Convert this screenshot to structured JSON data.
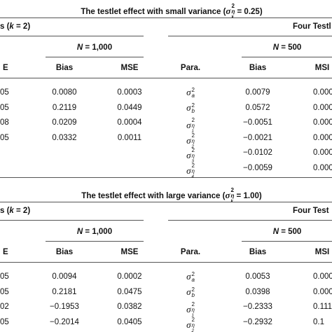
{
  "sections": [
    {
      "title": {
        "text": "The testlet effect with small variance (",
        "sym": "σ",
        "sup": "2",
        "sub": "η",
        "subsub": "k",
        "rest": " = 0.25)"
      },
      "left_header": {
        "pre": "s (",
        "var": "k",
        "post": " = 2)"
      },
      "right_header": "Four Testl",
      "left_group": {
        "var": "N",
        "rest": " = 1,000"
      },
      "right_group": {
        "var": "N",
        "rest": " = 500"
      },
      "left_columns": [
        "E",
        "Bias",
        "MSE"
      ],
      "right_columns": [
        "Para.",
        "Bias",
        "MSI"
      ],
      "left_rows": [
        [
          "05",
          "0.0080",
          "0.0003"
        ],
        [
          "05",
          "0.2119",
          "0.0449"
        ],
        [
          "08",
          "0.0209",
          "0.0004"
        ],
        [
          "05",
          "0.0332",
          "0.0011"
        ]
      ],
      "right_rows": [
        {
          "param": {
            "sym": "σ",
            "sup": "2",
            "sub": "a",
            "subsub": ""
          },
          "bias": "0.0079",
          "mse": "0.000"
        },
        {
          "param": {
            "sym": "σ",
            "sup": "2",
            "sub": "b",
            "subsub": ""
          },
          "bias": "0.0572",
          "mse": "0.000"
        },
        {
          "param": {
            "sym": "σ",
            "sup": "2",
            "sub": "η",
            "subsub": "1"
          },
          "bias": "−0.0051",
          "mse": "0.000"
        },
        {
          "param": {
            "sym": "σ",
            "sup": "2",
            "sub": "η",
            "subsub": "2"
          },
          "bias": "−0.0021",
          "mse": "0.000"
        },
        {
          "param": {
            "sym": "σ",
            "sup": "2",
            "sub": "η",
            "subsub": "3"
          },
          "bias": "−0.0102",
          "mse": "0.000"
        },
        {
          "param": {
            "sym": "σ",
            "sup": "2",
            "sub": "η",
            "subsub": "4"
          },
          "bias": "−0.0059",
          "mse": "0.000"
        }
      ]
    },
    {
      "title": {
        "text": "The testlet effect with large variance (",
        "sym": "σ",
        "sup": "2",
        "sub": "η",
        "subsub": "k",
        "rest": " = 1.00)"
      },
      "left_header": {
        "pre": "s (",
        "var": "k",
        "post": " = 2)"
      },
      "right_header": "Four Test",
      "left_group": {
        "var": "N",
        "rest": " = 1,000"
      },
      "right_group": {
        "var": "N",
        "rest": " = 500"
      },
      "left_columns": [
        "E",
        "Bias",
        "MSE"
      ],
      "right_columns": [
        "Para.",
        "Bias",
        "MSI"
      ],
      "left_rows": [
        [
          "05",
          "0.0094",
          "0.0002"
        ],
        [
          "05",
          "0.2181",
          "0.0475"
        ],
        [
          "02",
          "−0.1953",
          "0.0382"
        ],
        [
          "05",
          "−0.2014",
          "0.0405"
        ]
      ],
      "right_rows": [
        {
          "param": {
            "sym": "σ",
            "sup": "2",
            "sub": "a",
            "subsub": ""
          },
          "bias": "0.0053",
          "mse": "0.000"
        },
        {
          "param": {
            "sym": "σ",
            "sup": "2",
            "sub": "b",
            "subsub": ""
          },
          "bias": "0.0398",
          "mse": "0.000"
        },
        {
          "param": {
            "sym": "σ",
            "sup": "2",
            "sub": "η",
            "subsub": "1"
          },
          "bias": "−0.2333",
          "mse": "0.111"
        },
        {
          "param": {
            "sym": "σ",
            "sup": "2",
            "sub": "η",
            "subsub": "2"
          },
          "bias": "−0.2932",
          "mse": "0.1"
        }
      ]
    }
  ]
}
